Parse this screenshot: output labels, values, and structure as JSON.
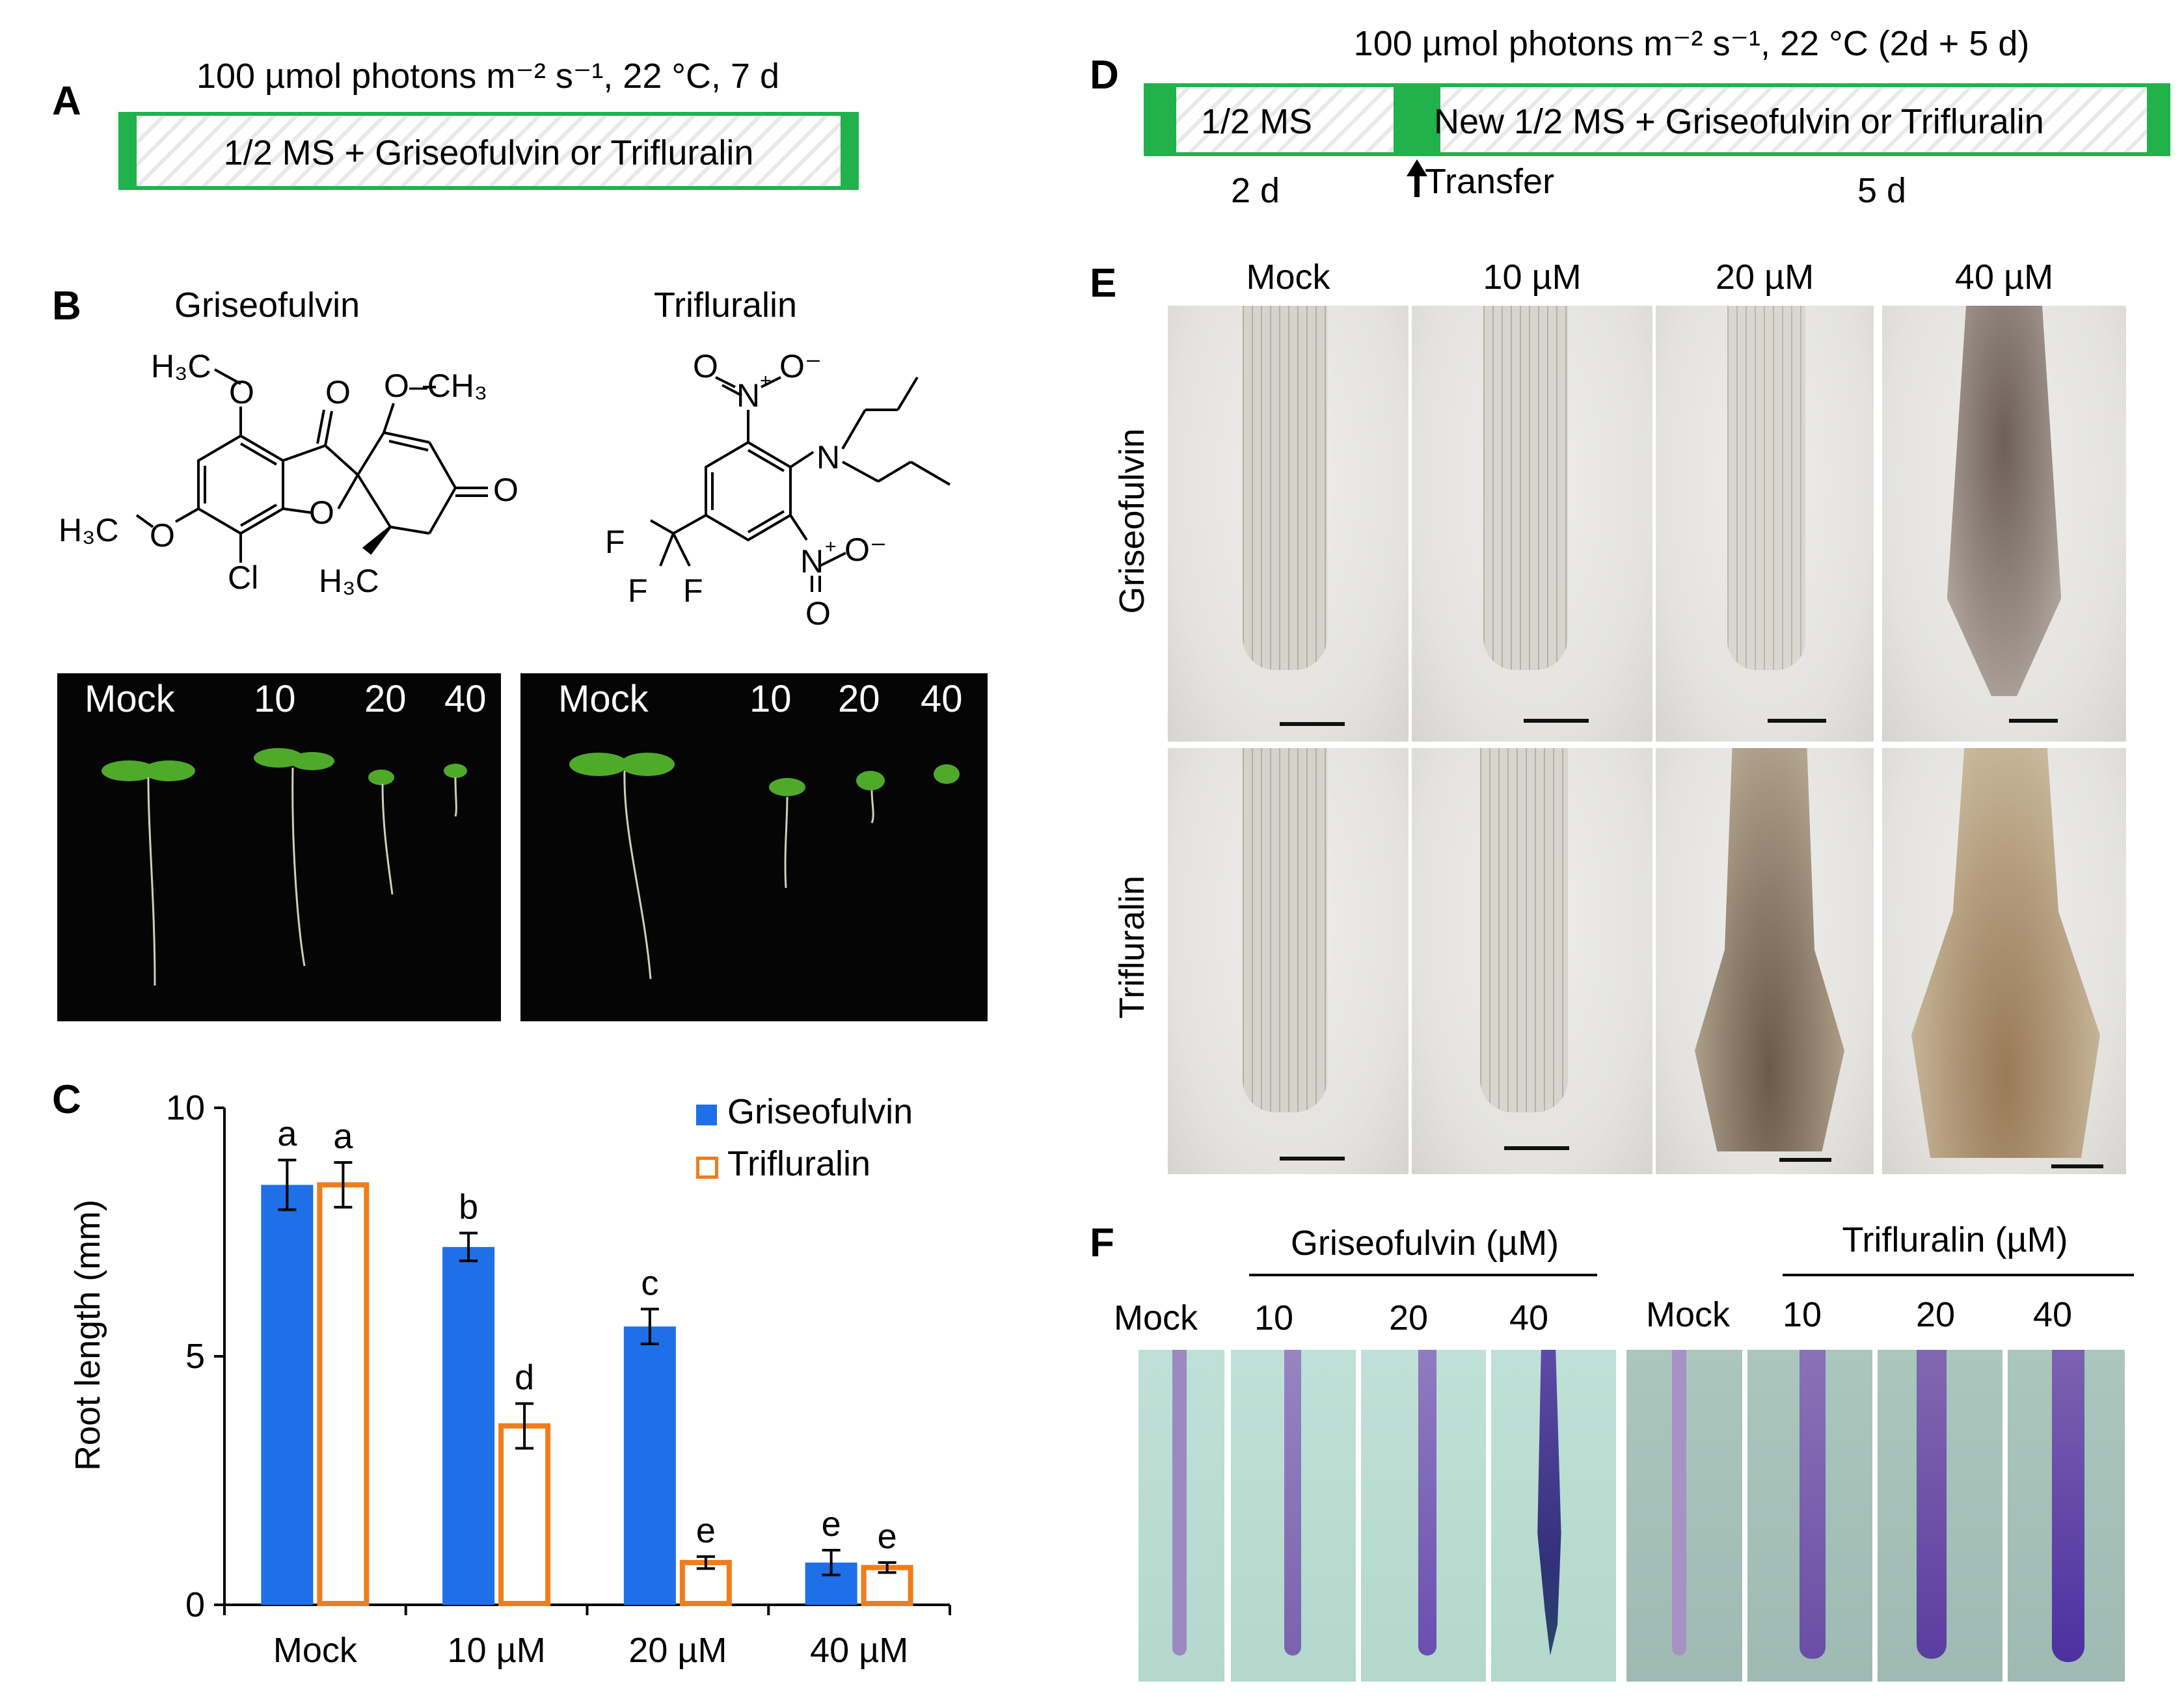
{
  "panels": {
    "A": {
      "label": "A",
      "condition": "100 µmol photons m⁻² s⁻¹, 22 °C, 7 d",
      "medium": "1/2 MS + Griseofulvin or Trifluralin"
    },
    "B": {
      "label": "B",
      "compound1": "Griseofulvin",
      "compound2": "Trifluralin",
      "photo_labels_left": [
        "Mock",
        "10",
        "20",
        "40"
      ],
      "photo_labels_right": [
        "Mock",
        "10",
        "20",
        "40"
      ],
      "chem_text": {
        "h3c_o_top": "H₃C",
        "o1": "O",
        "o_ch3": "O–CH₃",
        "o2": "O",
        "h3c_o_left": "H₃C",
        "o3": "O",
        "o4": "O",
        "o5": "O",
        "cl": "Cl",
        "h3c": "H₃C",
        "o_no2_top": "O",
        "n_top": "N",
        "o_minus_top": "O⁻",
        "n_amine": "N",
        "f1": "F",
        "f2": "F",
        "f3": "F",
        "n_bottom": "N",
        "o_minus_bottom": "O⁻",
        "o_bottom": "O",
        "plus1": "+",
        "plus2": "+"
      }
    },
    "C": {
      "label": "C",
      "legend": [
        "Griseofulvin",
        "Trifluralin"
      ],
      "ylabel": "Root length (mm)",
      "yticks": [
        "0",
        "5",
        "10"
      ],
      "categories": [
        "Mock",
        "10 µM",
        "20 µM",
        "40 µM"
      ],
      "sig_griseofulvin": [
        "a",
        "b",
        "c",
        "e"
      ],
      "sig_trifluralin": [
        "a",
        "d",
        "e",
        "e"
      ]
    },
    "D": {
      "label": "D",
      "condition": "100 µmol photons m⁻² s⁻¹, 22 °C (2d + 5 d)",
      "medium1": "1/2 MS",
      "medium2": "New 1/2 MS + Griseofulvin or Trifluralin",
      "transfer": "Transfer",
      "dur1": "2 d",
      "dur2": "5 d"
    },
    "E": {
      "label": "E",
      "columns": [
        "Mock",
        "10 µM",
        "20 µM",
        "40 µM"
      ],
      "rows": [
        "Griseofulvin",
        "Trifluralin"
      ]
    },
    "F": {
      "label": "F",
      "group1": "Griseofulvin (µM)",
      "group2": "Trifluralin (µM)",
      "cols1": [
        "Mock",
        "10",
        "20",
        "40"
      ],
      "cols2": [
        "Mock",
        "10",
        "20",
        "40"
      ]
    }
  },
  "colors": {
    "griseofulvin": "#1f6fe8",
    "trifluralin": "#f07d1a",
    "medium_border": "#21b24b"
  },
  "chart_data": {
    "type": "bar",
    "categories": [
      "Mock",
      "10 µM",
      "20 µM",
      "40 µM"
    ],
    "series": [
      {
        "name": "Griseofulvin",
        "values": [
          8.45,
          7.2,
          5.6,
          0.85
        ],
        "errors": [
          0.5,
          0.28,
          0.35,
          0.25
        ],
        "letters": [
          "a",
          "b",
          "c",
          "e"
        ]
      },
      {
        "name": "Trifluralin",
        "values": [
          8.45,
          3.6,
          0.85,
          0.75
        ],
        "errors": [
          0.45,
          0.45,
          0.12,
          0.1
        ],
        "letters": [
          "a",
          "d",
          "e",
          "e"
        ]
      }
    ],
    "ylabel": "Root length (mm)",
    "xlabel": "",
    "ylim": [
      0,
      10
    ],
    "yticks": [
      0,
      5,
      10
    ],
    "legend_position": "top-right"
  }
}
